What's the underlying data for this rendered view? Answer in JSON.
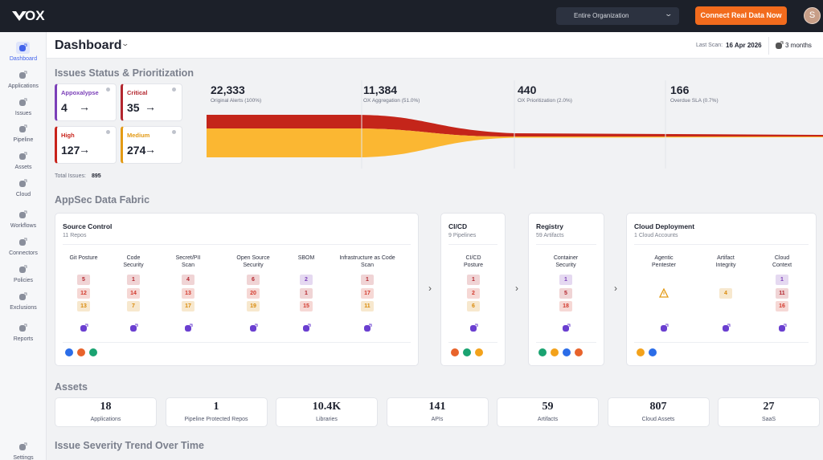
{
  "topbar": {
    "logo": "ox",
    "org_selector": "Entire Organization",
    "cta": "Connect Real Data Now",
    "avatar": "S"
  },
  "sidebar": [
    "Dashboard",
    "Applications",
    "Issues",
    "Pipeline",
    "Assets",
    "Cloud",
    "Workflows",
    "Connectors",
    "Policies",
    "Exclusions",
    "Reports",
    "Settings"
  ],
  "header": {
    "title": "Dashboard",
    "last_scan_label": "Last Scan:",
    "last_scan": "16 Apr 2026",
    "range": "3 months"
  },
  "issues": {
    "title": "Issues Status & Prioritization",
    "cards": [
      {
        "label": "Appoxalypse",
        "value": 4,
        "color": "#7b3fb8"
      },
      {
        "label": "Critical",
        "value": 35,
        "color": "#b3262e"
      },
      {
        "label": "High",
        "value": 127,
        "color": "#c8231b"
      },
      {
        "label": "Medium",
        "value": 274,
        "color": "#e39a14"
      }
    ],
    "total_label": "Total Issues:",
    "total": 895,
    "funnel": [
      {
        "value": "22,333",
        "label": "Original Alerts (100%)"
      },
      {
        "value": "11,384",
        "label": "OX Aggregation (51.0%)"
      },
      {
        "value": 440,
        "label": "OX Prioritization (2.0%)"
      },
      {
        "value": 166,
        "label": "Overdue SLA (0.7%)"
      }
    ]
  },
  "fabric": {
    "title": "AppSec Data Fabric",
    "groups": [
      {
        "title": "Source Control",
        "subtitle": "11 Repos",
        "columns": [
          {
            "label": "Git Posture",
            "badges": [
              {
                "value": 5,
                "color": "#b3262e"
              },
              {
                "value": 12,
                "color": "#d23b2e"
              },
              {
                "value": 13,
                "color": "#d98a0b"
              }
            ]
          },
          {
            "label": "Code Security",
            "badges": [
              {
                "value": 1,
                "color": "#b3262e"
              },
              {
                "value": 14,
                "color": "#d23b2e"
              },
              {
                "value": 7,
                "color": "#d98a0b"
              }
            ]
          },
          {
            "label": "Secret/PII Scan",
            "badges": [
              {
                "value": 4,
                "color": "#b3262e"
              },
              {
                "value": 13,
                "color": "#d23b2e"
              },
              {
                "value": 17,
                "color": "#d98a0b"
              }
            ]
          },
          {
            "label": "Open Source Security",
            "badges": [
              {
                "value": 6,
                "color": "#b3262e"
              },
              {
                "value": 20,
                "color": "#d23b2e"
              },
              {
                "value": 19,
                "color": "#d98a0b"
              }
            ]
          },
          {
            "label": "SBOM",
            "badges": [
              {
                "value": 2,
                "color": "#7b3fb8"
              },
              {
                "value": 1,
                "color": "#b3262e"
              },
              {
                "value": 15,
                "color": "#d23b2e"
              }
            ]
          },
          {
            "label": "Infrastructure as Code Scan",
            "badges": [
              {
                "value": 1,
                "color": "#b3262e"
              },
              {
                "value": 17,
                "color": "#d23b2e"
              },
              {
                "value": 11,
                "color": "#d98a0b"
              }
            ]
          }
        ]
      },
      {
        "title": "CI/CD",
        "subtitle": "9 Pipelines",
        "columns": [
          {
            "label": "CI/CD Posture",
            "badges": [
              {
                "value": 1,
                "color": "#b3262e"
              },
              {
                "value": 2,
                "color": "#d23b2e"
              },
              {
                "value": 6,
                "color": "#d98a0b"
              }
            ]
          }
        ]
      },
      {
        "title": "Registry",
        "subtitle": "59 Artifacts",
        "columns": [
          {
            "label": "Container Security",
            "badges": [
              {
                "value": 1,
                "color": "#7b3fb8"
              },
              {
                "value": 5,
                "color": "#b3262e"
              },
              {
                "value": 18,
                "color": "#d23b2e"
              }
            ]
          }
        ]
      },
      {
        "title": "Cloud Deployment",
        "subtitle": "1 Cloud Accounts",
        "columns": [
          {
            "label": "Agentic Pentester",
            "badges": []
          },
          {
            "label": "Artifact Integrity",
            "badges": [
              null,
              {
                "value": 4,
                "color": "#d98a0b"
              },
              null
            ]
          },
          {
            "label": "Cloud Context",
            "badges": [
              {
                "value": 1,
                "color": "#7b3fb8"
              },
              {
                "value": 11,
                "color": "#b3262e"
              },
              {
                "value": 16,
                "color": "#d23b2e"
              }
            ]
          }
        ]
      }
    ]
  },
  "assets": {
    "title": "Assets",
    "items": [
      {
        "value": 18,
        "label": "Applications"
      },
      {
        "value": 1,
        "label": "Pipeline Protected Repos"
      },
      {
        "value": "10.4K",
        "label": "Libraries"
      },
      {
        "value": 141,
        "label": "APIs"
      },
      {
        "value": 59,
        "label": "Artifacts"
      },
      {
        "value": 807,
        "label": "Cloud Assets"
      },
      {
        "value": 27,
        "label": "SaaS"
      }
    ]
  },
  "trend": {
    "title": "Issue Severity Trend Over Time"
  }
}
